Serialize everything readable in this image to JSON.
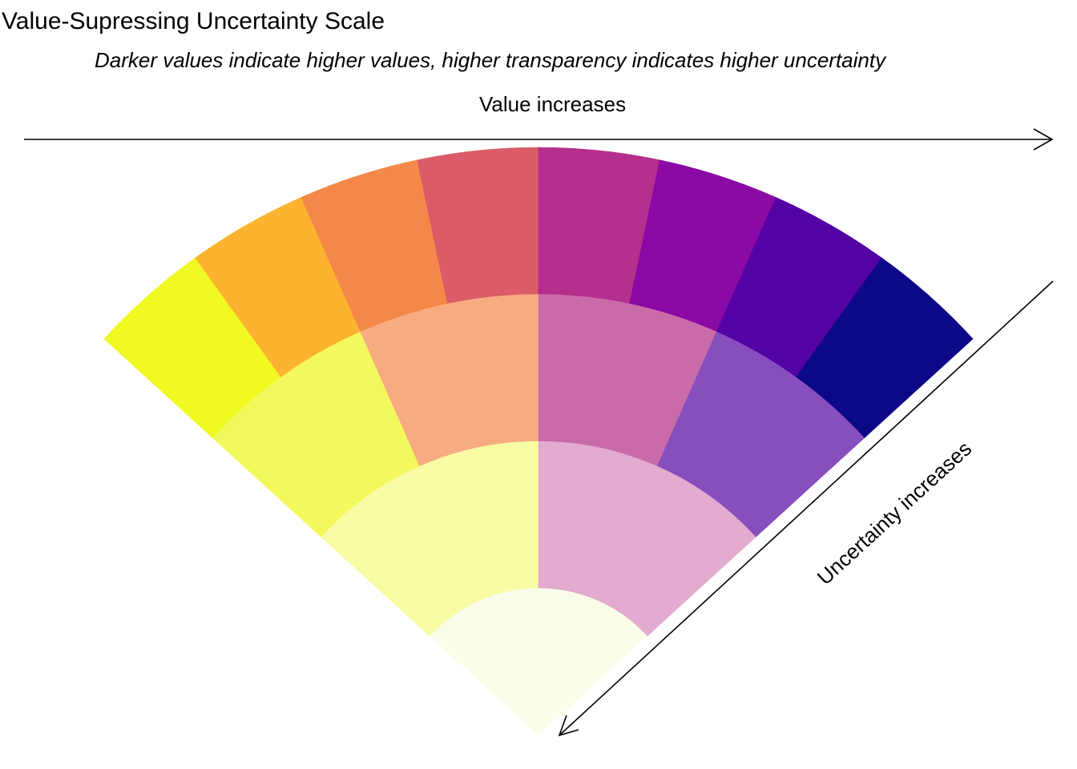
{
  "chart_data": {
    "type": "value-suppressing uncertainty palette (wedge)",
    "title": "Value-Supressing Uncertainty Scale",
    "subtitle": "Darker values indicate higher values, higher transparency indicates higher uncertainty",
    "x_axis_label": "Value increases",
    "uncertainty_axis_label": "Uncertainty increases",
    "value_direction": "left-to-right",
    "uncertainty_direction": "outer-to-inner",
    "grid": false,
    "legend": "none",
    "levels": [
      {
        "uncertainty_level": 0,
        "cells": [
          {
            "value_bin": 1,
            "color": "#F0F921"
          },
          {
            "value_bin": 2,
            "color": "#FDB32F"
          },
          {
            "value_bin": 3,
            "color": "#F48849"
          },
          {
            "value_bin": 4,
            "color": "#DB5C68"
          },
          {
            "value_bin": 5,
            "color": "#B52F8C"
          },
          {
            "value_bin": 6,
            "color": "#8B0AA5"
          },
          {
            "value_bin": 7,
            "color": "#5402A3"
          },
          {
            "value_bin": 8,
            "color": "#0D0887"
          }
        ]
      },
      {
        "uncertainty_level": 1,
        "cells": [
          {
            "value_bin": 1,
            "color": "#F3F95C"
          },
          {
            "value_bin": 2,
            "color": "#F7AB80"
          },
          {
            "value_bin": 3,
            "color": "#CA6BA9"
          },
          {
            "value_bin": 4,
            "color": "#874EBE"
          }
        ]
      },
      {
        "uncertainty_level": 2,
        "cells": [
          {
            "value_bin": 1,
            "color": "#F8FCA4"
          },
          {
            "value_bin": 2,
            "color": "#E2ABCF"
          }
        ]
      },
      {
        "uncertainty_level": 3,
        "cells": [
          {
            "value_bin": 1,
            "color": "#FAFDE9"
          }
        ]
      }
    ]
  }
}
